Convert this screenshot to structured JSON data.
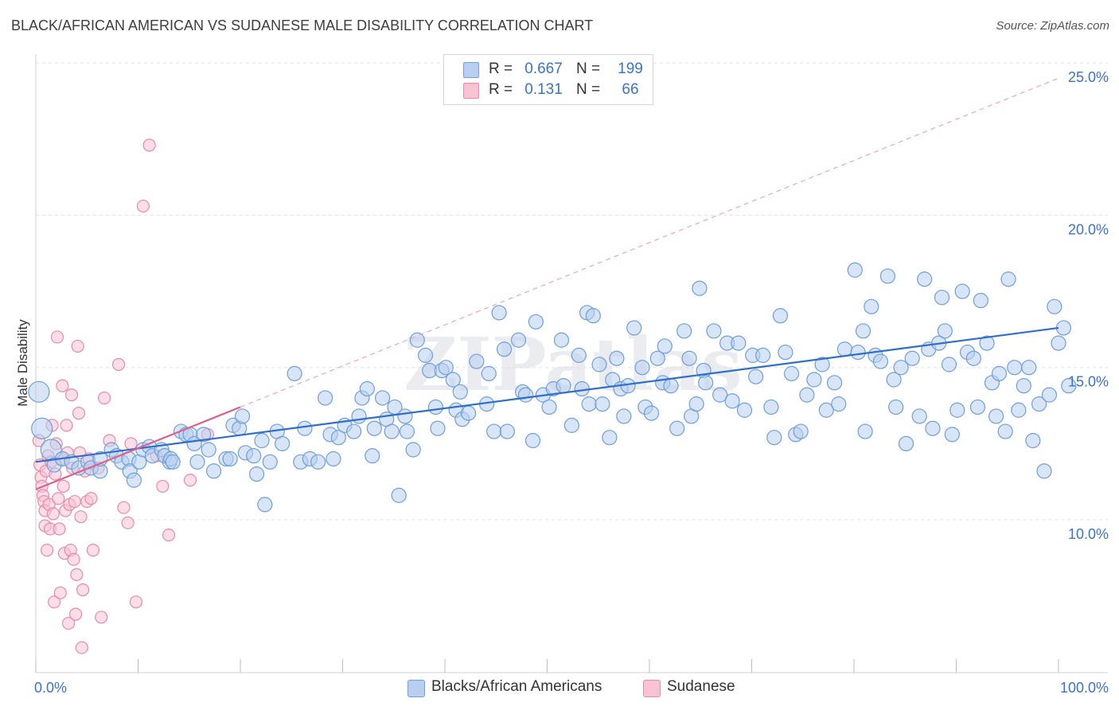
{
  "title": "BLACK/AFRICAN AMERICAN VS SUDANESE MALE DISABILITY CORRELATION CHART",
  "source": "Source: ZipAtlas.com",
  "watermark": "ZIPatlas",
  "legend": {
    "rows": [
      {
        "r_label": "R =",
        "r_value": "0.667",
        "n_label": "N =",
        "n_value": "199"
      },
      {
        "r_label": "R =",
        "r_value": "0.131",
        "n_label": "N =",
        "n_value": "66"
      }
    ]
  },
  "chart_data": {
    "type": "scatter",
    "title": "BLACK/AFRICAN AMERICAN VS SUDANESE MALE DISABILITY CORRELATION CHART",
    "xlabel": "",
    "ylabel": "Male Disability",
    "xlim": [
      0,
      100
    ],
    "ylim": [
      5,
      26
    ],
    "x_tick_labels": [
      "0.0%",
      "100.0%"
    ],
    "y_ticks": [
      10,
      15,
      20,
      25
    ],
    "y_tick_labels": [
      "10.0%",
      "15.0%",
      "20.0%",
      "25.0%"
    ],
    "grid": true,
    "legend_position": "top-center",
    "colors": {
      "blue_fill": "#b8cff0",
      "blue_stroke": "#6f9ed8",
      "blue_line": "#2f6fcc",
      "pink_fill": "#f8c3d3",
      "pink_stroke": "#e88aa8",
      "pink_line": "#e0608a",
      "accent_text": "#3b73c9",
      "grid": "#e2e2e2"
    },
    "series": [
      {
        "name": "Blacks/African Americans",
        "trend": {
          "x": [
            0,
            100
          ],
          "y": [
            11.9,
            16.3
          ]
        },
        "points": [
          [
            0.3,
            14.2
          ],
          [
            0.6,
            13.0
          ],
          [
            1.5,
            12.3
          ],
          [
            1.8,
            11.8
          ],
          [
            2.6,
            12.0
          ],
          [
            3.5,
            11.9
          ],
          [
            4.2,
            11.7
          ],
          [
            5.1,
            11.9
          ],
          [
            5.4,
            11.7
          ],
          [
            6.3,
            11.6
          ],
          [
            6.3,
            12.0
          ],
          [
            7.4,
            12.3
          ],
          [
            7.9,
            12.1
          ],
          [
            8.4,
            11.9
          ],
          [
            9.1,
            12.0
          ],
          [
            9.2,
            11.6
          ],
          [
            9.6,
            11.3
          ],
          [
            10.1,
            11.9
          ],
          [
            10.5,
            12.3
          ],
          [
            11.1,
            12.4
          ],
          [
            11.4,
            12.1
          ],
          [
            12.3,
            12.3
          ],
          [
            12.6,
            12.1
          ],
          [
            13.1,
            11.9
          ],
          [
            13.2,
            12.0
          ],
          [
            13.4,
            11.9
          ],
          [
            14.2,
            12.9
          ],
          [
            14.7,
            12.8
          ],
          [
            15.1,
            12.8
          ],
          [
            15.5,
            12.5
          ],
          [
            15.8,
            11.9
          ],
          [
            16.4,
            12.8
          ],
          [
            16.9,
            12.3
          ],
          [
            17.4,
            11.6
          ],
          [
            18.6,
            12.0
          ],
          [
            19.0,
            12.0
          ],
          [
            19.3,
            13.1
          ],
          [
            19.9,
            13.0
          ],
          [
            20.2,
            13.4
          ],
          [
            20.5,
            12.2
          ],
          [
            21.3,
            12.1
          ],
          [
            21.6,
            11.5
          ],
          [
            22.1,
            12.6
          ],
          [
            22.4,
            10.5
          ],
          [
            22.9,
            11.9
          ],
          [
            23.6,
            12.9
          ],
          [
            24.1,
            12.5
          ],
          [
            25.3,
            14.8
          ],
          [
            25.9,
            11.9
          ],
          [
            26.3,
            13.0
          ],
          [
            26.8,
            12.0
          ],
          [
            27.6,
            11.9
          ],
          [
            28.3,
            14.0
          ],
          [
            28.8,
            12.8
          ],
          [
            29.1,
            12.0
          ],
          [
            29.6,
            12.7
          ],
          [
            30.2,
            13.1
          ],
          [
            31.1,
            12.9
          ],
          [
            31.6,
            13.4
          ],
          [
            31.9,
            14.0
          ],
          [
            32.4,
            14.3
          ],
          [
            32.9,
            12.1
          ],
          [
            33.1,
            13.0
          ],
          [
            33.9,
            14.0
          ],
          [
            34.3,
            13.3
          ],
          [
            34.8,
            12.9
          ],
          [
            35.1,
            13.7
          ],
          [
            35.5,
            10.8
          ],
          [
            36.1,
            13.4
          ],
          [
            36.3,
            12.9
          ],
          [
            36.9,
            12.3
          ],
          [
            37.3,
            15.9
          ],
          [
            38.1,
            15.4
          ],
          [
            38.5,
            14.9
          ],
          [
            39.1,
            13.7
          ],
          [
            39.3,
            13.0
          ],
          [
            39.7,
            14.9
          ],
          [
            40.1,
            15.0
          ],
          [
            40.8,
            14.6
          ],
          [
            41.1,
            13.6
          ],
          [
            41.5,
            14.2
          ],
          [
            41.7,
            13.3
          ],
          [
            42.3,
            13.5
          ],
          [
            43.1,
            15.2
          ],
          [
            44.1,
            13.8
          ],
          [
            44.3,
            14.8
          ],
          [
            44.8,
            12.9
          ],
          [
            45.3,
            16.8
          ],
          [
            45.8,
            15.6
          ],
          [
            46.1,
            12.9
          ],
          [
            47.2,
            15.9
          ],
          [
            47.6,
            14.2
          ],
          [
            47.9,
            14.1
          ],
          [
            48.6,
            12.6
          ],
          [
            48.9,
            16.5
          ],
          [
            49.6,
            14.1
          ],
          [
            50.2,
            13.7
          ],
          [
            50.6,
            14.3
          ],
          [
            51.4,
            15.9
          ],
          [
            51.6,
            14.4
          ],
          [
            52.4,
            13.1
          ],
          [
            53.1,
            15.4
          ],
          [
            53.4,
            14.3
          ],
          [
            53.9,
            16.8
          ],
          [
            54.1,
            13.8
          ],
          [
            54.5,
            16.7
          ],
          [
            55.1,
            15.1
          ],
          [
            55.4,
            13.8
          ],
          [
            56.1,
            12.7
          ],
          [
            56.4,
            14.6
          ],
          [
            56.8,
            15.3
          ],
          [
            57.2,
            14.3
          ],
          [
            57.5,
            13.4
          ],
          [
            57.9,
            14.4
          ],
          [
            58.5,
            16.3
          ],
          [
            59.3,
            15.0
          ],
          [
            59.6,
            13.7
          ],
          [
            60.2,
            13.5
          ],
          [
            60.8,
            15.3
          ],
          [
            61.3,
            14.5
          ],
          [
            61.5,
            15.7
          ],
          [
            62.1,
            14.4
          ],
          [
            62.7,
            13.0
          ],
          [
            63.4,
            16.2
          ],
          [
            63.9,
            15.3
          ],
          [
            64.1,
            13.4
          ],
          [
            64.6,
            13.8
          ],
          [
            64.9,
            17.6
          ],
          [
            65.3,
            14.9
          ],
          [
            65.5,
            14.5
          ],
          [
            66.3,
            16.2
          ],
          [
            66.9,
            14.1
          ],
          [
            67.6,
            15.8
          ],
          [
            68.1,
            13.9
          ],
          [
            68.7,
            15.8
          ],
          [
            69.3,
            13.6
          ],
          [
            70.1,
            15.4
          ],
          [
            70.4,
            14.7
          ],
          [
            71.1,
            15.4
          ],
          [
            71.9,
            13.7
          ],
          [
            72.2,
            12.7
          ],
          [
            72.8,
            16.7
          ],
          [
            73.3,
            15.5
          ],
          [
            73.9,
            14.8
          ],
          [
            74.3,
            12.8
          ],
          [
            74.8,
            12.9
          ],
          [
            75.4,
            14.1
          ],
          [
            76.1,
            14.6
          ],
          [
            76.9,
            15.1
          ],
          [
            77.3,
            13.6
          ],
          [
            78.1,
            14.5
          ],
          [
            78.5,
            13.8
          ],
          [
            79.1,
            15.6
          ],
          [
            80.1,
            18.2
          ],
          [
            80.4,
            15.5
          ],
          [
            80.9,
            16.2
          ],
          [
            81.1,
            12.9
          ],
          [
            81.7,
            17.0
          ],
          [
            82.1,
            15.4
          ],
          [
            82.6,
            15.2
          ],
          [
            83.3,
            18.0
          ],
          [
            83.9,
            14.6
          ],
          [
            84.1,
            13.7
          ],
          [
            84.6,
            15.0
          ],
          [
            85.1,
            12.5
          ],
          [
            85.7,
            15.3
          ],
          [
            86.4,
            13.4
          ],
          [
            86.9,
            17.9
          ],
          [
            87.3,
            15.6
          ],
          [
            87.7,
            13.0
          ],
          [
            88.3,
            15.8
          ],
          [
            88.6,
            17.3
          ],
          [
            88.9,
            16.2
          ],
          [
            89.3,
            15.1
          ],
          [
            89.6,
            12.8
          ],
          [
            90.1,
            13.6
          ],
          [
            90.6,
            17.5
          ],
          [
            91.1,
            15.5
          ],
          [
            91.7,
            15.3
          ],
          [
            92.1,
            13.7
          ],
          [
            92.4,
            17.2
          ],
          [
            93.0,
            15.8
          ],
          [
            93.5,
            14.5
          ],
          [
            93.9,
            13.4
          ],
          [
            94.2,
            14.8
          ],
          [
            94.8,
            12.9
          ],
          [
            95.1,
            17.9
          ],
          [
            95.7,
            15.0
          ],
          [
            96.1,
            13.6
          ],
          [
            96.6,
            14.4
          ],
          [
            97.1,
            15.0
          ],
          [
            97.5,
            12.6
          ],
          [
            98.1,
            13.8
          ],
          [
            98.6,
            11.6
          ],
          [
            99.1,
            14.1
          ],
          [
            99.6,
            17.0
          ],
          [
            100.0,
            15.8
          ],
          [
            100.5,
            16.3
          ],
          [
            101.0,
            14.4
          ]
        ]
      },
      {
        "name": "Sudanese",
        "trend": {
          "x": [
            0,
            20
          ],
          "y": [
            11.0,
            13.7
          ]
        },
        "points": [
          [
            0.3,
            12.6
          ],
          [
            0.4,
            11.8
          ],
          [
            0.5,
            11.4
          ],
          [
            0.6,
            11.1
          ],
          [
            0.7,
            10.8
          ],
          [
            0.8,
            10.6
          ],
          [
            0.9,
            10.3
          ],
          [
            0.9,
            9.8
          ],
          [
            1.0,
            11.6
          ],
          [
            1.1,
            9.0
          ],
          [
            1.2,
            12.1
          ],
          [
            1.3,
            10.5
          ],
          [
            1.4,
            9.7
          ],
          [
            1.5,
            11.9
          ],
          [
            1.6,
            13.1
          ],
          [
            1.7,
            10.2
          ],
          [
            1.8,
            7.3
          ],
          [
            1.9,
            11.5
          ],
          [
            2.0,
            12.5
          ],
          [
            2.1,
            16.0
          ],
          [
            2.2,
            10.7
          ],
          [
            2.3,
            9.7
          ],
          [
            2.4,
            7.6
          ],
          [
            2.5,
            12.0
          ],
          [
            2.6,
            14.4
          ],
          [
            2.7,
            11.1
          ],
          [
            2.8,
            8.9
          ],
          [
            2.9,
            10.3
          ],
          [
            3.0,
            13.1
          ],
          [
            3.1,
            12.2
          ],
          [
            3.2,
            6.6
          ],
          [
            3.3,
            10.5
          ],
          [
            3.4,
            9.0
          ],
          [
            3.5,
            14.1
          ],
          [
            3.6,
            11.7
          ],
          [
            3.7,
            8.7
          ],
          [
            3.8,
            10.6
          ],
          [
            3.9,
            6.9
          ],
          [
            4.0,
            8.2
          ],
          [
            4.1,
            15.7
          ],
          [
            4.2,
            13.5
          ],
          [
            4.3,
            12.2
          ],
          [
            4.4,
            10.1
          ],
          [
            4.5,
            5.8
          ],
          [
            4.6,
            7.7
          ],
          [
            4.8,
            11.6
          ],
          [
            5.0,
            10.6
          ],
          [
            5.2,
            12.0
          ],
          [
            5.4,
            10.7
          ],
          [
            5.6,
            9.0
          ],
          [
            6.1,
            11.7
          ],
          [
            6.4,
            6.8
          ],
          [
            6.7,
            14.0
          ],
          [
            7.2,
            12.6
          ],
          [
            8.1,
            15.1
          ],
          [
            8.6,
            10.4
          ],
          [
            9.0,
            9.9
          ],
          [
            9.3,
            12.5
          ],
          [
            9.8,
            7.3
          ],
          [
            10.5,
            20.3
          ],
          [
            11.1,
            22.3
          ],
          [
            11.8,
            12.1
          ],
          [
            12.4,
            11.1
          ],
          [
            13.0,
            9.5
          ],
          [
            15.1,
            11.3
          ],
          [
            16.8,
            12.8
          ]
        ]
      }
    ]
  }
}
